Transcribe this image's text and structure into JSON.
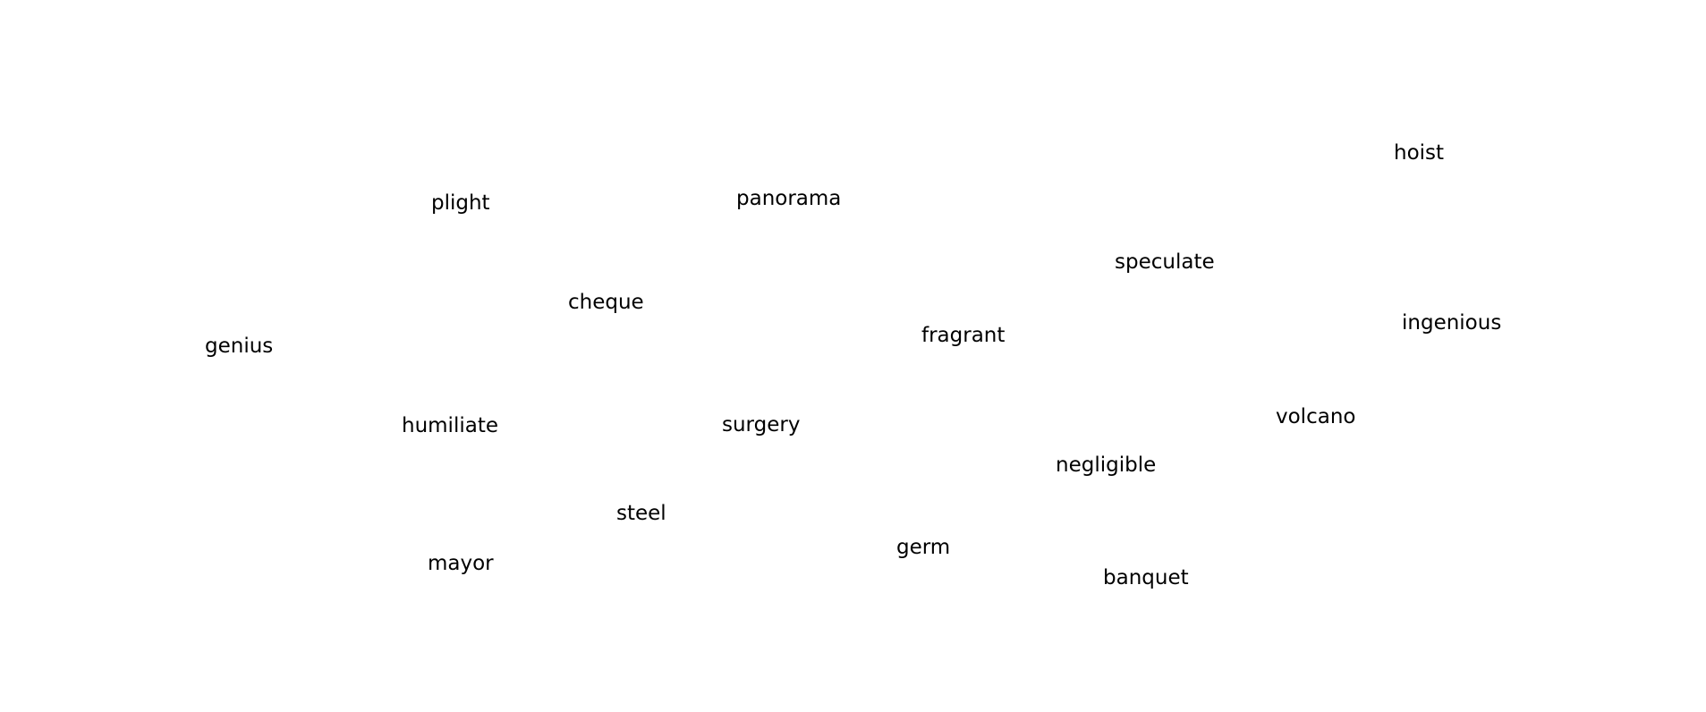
{
  "words": {
    "hoist": "hoist",
    "plight": "plight",
    "panorama": "panorama",
    "speculate": "speculate",
    "cheque": "cheque",
    "ingenious": "ingenious",
    "fragrant": "fragrant",
    "genius": "genius",
    "volcano": "volcano",
    "humiliate": "humiliate",
    "surgery": "surgery",
    "negligible": "negligible",
    "steel": "steel",
    "germ": "germ",
    "mayor": "mayor",
    "banquet": "banquet"
  },
  "colors": {
    "background": "#ffffff",
    "text": "#000000"
  }
}
